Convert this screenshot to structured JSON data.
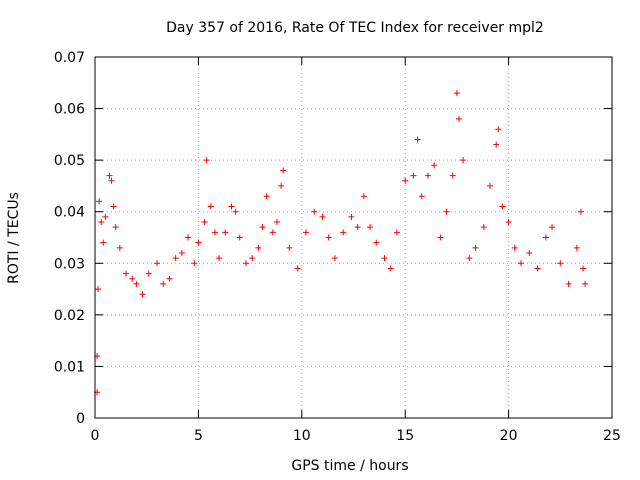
{
  "chart_data": {
    "type": "scatter",
    "title": "Day 357 of 2016, Rate Of TEC Index for receiver mpl2",
    "xlabel": "GPS time / hours",
    "ylabel": "ROTI / TECUs",
    "xlim": [
      0,
      25
    ],
    "ylim": [
      0,
      0.07
    ],
    "xticks": [
      "0",
      "5",
      "10",
      "15",
      "20",
      "25"
    ],
    "yticks": [
      "0",
      "0.01",
      "0.02",
      "0.03",
      "0.04",
      "0.05",
      "0.06",
      "0.07"
    ],
    "grid": true,
    "marker": "+",
    "color": "#ff0000",
    "series": [
      {
        "name": "ROTI",
        "points": [
          [
            0.1,
            0.005
          ],
          [
            0.1,
            0.012
          ],
          [
            0.15,
            0.025
          ],
          [
            0.2,
            0.042
          ],
          [
            0.3,
            0.038
          ],
          [
            0.4,
            0.034
          ],
          [
            0.5,
            0.039
          ],
          [
            0.7,
            0.047
          ],
          [
            0.8,
            0.046
          ],
          [
            0.9,
            0.041
          ],
          [
            1.0,
            0.037
          ],
          [
            1.2,
            0.033
          ],
          [
            1.5,
            0.028
          ],
          [
            1.8,
            0.027
          ],
          [
            2.0,
            0.026
          ],
          [
            2.3,
            0.024
          ],
          [
            2.6,
            0.028
          ],
          [
            3.0,
            0.03
          ],
          [
            3.3,
            0.026
          ],
          [
            3.6,
            0.027
          ],
          [
            3.9,
            0.031
          ],
          [
            4.2,
            0.032
          ],
          [
            4.5,
            0.035
          ],
          [
            4.8,
            0.03
          ],
          [
            5.0,
            0.034
          ],
          [
            5.3,
            0.038
          ],
          [
            5.4,
            0.05
          ],
          [
            5.6,
            0.041
          ],
          [
            5.8,
            0.036
          ],
          [
            6.0,
            0.031
          ],
          [
            6.3,
            0.036
          ],
          [
            6.6,
            0.041
          ],
          [
            6.8,
            0.04
          ],
          [
            7.0,
            0.035
          ],
          [
            7.3,
            0.03
          ],
          [
            7.6,
            0.031
          ],
          [
            7.9,
            0.033
          ],
          [
            8.1,
            0.037
          ],
          [
            8.3,
            0.043
          ],
          [
            8.6,
            0.036
          ],
          [
            8.8,
            0.038
          ],
          [
            9.0,
            0.045
          ],
          [
            9.1,
            0.048
          ],
          [
            9.4,
            0.033
          ],
          [
            9.8,
            0.029
          ],
          [
            10.2,
            0.036
          ],
          [
            10.6,
            0.04
          ],
          [
            11.0,
            0.039
          ],
          [
            11.3,
            0.035
          ],
          [
            11.6,
            0.031
          ],
          [
            12.0,
            0.036
          ],
          [
            12.4,
            0.039
          ],
          [
            12.7,
            0.037
          ],
          [
            13.0,
            0.043
          ],
          [
            13.3,
            0.037
          ],
          [
            13.6,
            0.034
          ],
          [
            14.0,
            0.031
          ],
          [
            14.3,
            0.029
          ],
          [
            14.6,
            0.036
          ],
          [
            15.0,
            0.046
          ],
          [
            15.4,
            0.047
          ],
          [
            15.6,
            0.054
          ],
          [
            15.8,
            0.043
          ],
          [
            16.1,
            0.047
          ],
          [
            16.4,
            0.049
          ],
          [
            16.7,
            0.035
          ],
          [
            17.0,
            0.04
          ],
          [
            17.3,
            0.047
          ],
          [
            17.5,
            0.063
          ],
          [
            17.6,
            0.058
          ],
          [
            17.8,
            0.05
          ],
          [
            18.1,
            0.031
          ],
          [
            18.4,
            0.033
          ],
          [
            18.8,
            0.037
          ],
          [
            19.1,
            0.045
          ],
          [
            19.4,
            0.053
          ],
          [
            19.5,
            0.056
          ],
          [
            19.7,
            0.041
          ],
          [
            20.0,
            0.038
          ],
          [
            20.3,
            0.033
          ],
          [
            20.6,
            0.03
          ],
          [
            21.0,
            0.032
          ],
          [
            21.4,
            0.029
          ],
          [
            21.8,
            0.035
          ],
          [
            22.1,
            0.037
          ],
          [
            22.5,
            0.03
          ],
          [
            22.9,
            0.026
          ],
          [
            23.3,
            0.033
          ],
          [
            23.5,
            0.04
          ],
          [
            23.6,
            0.029
          ],
          [
            23.7,
            0.026
          ]
        ]
      }
    ]
  }
}
